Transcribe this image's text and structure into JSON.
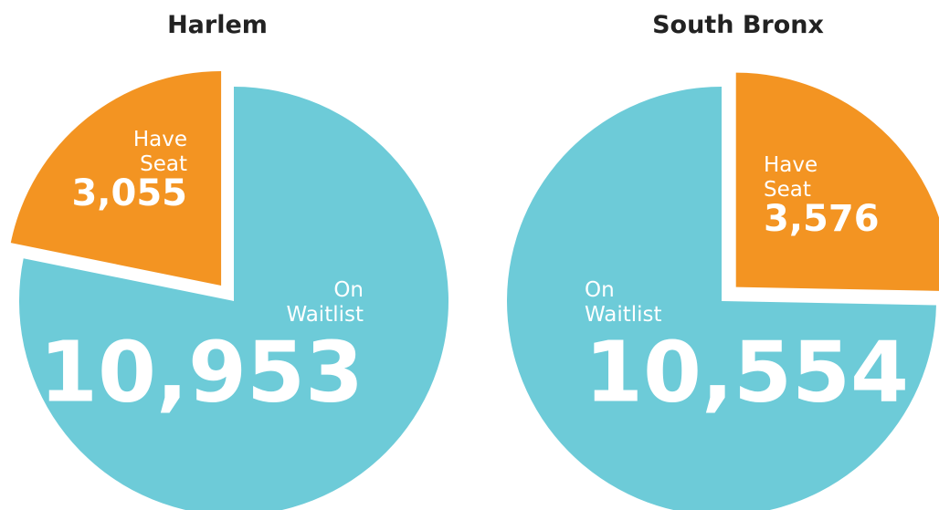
{
  "chart_data": [
    {
      "type": "pie",
      "title": "Harlem",
      "categories": [
        "Have Seat",
        "On Waitlist"
      ],
      "values": [
        3055,
        10953
      ],
      "value_labels": [
        "3,055",
        "10,953"
      ],
      "colors": [
        "#f39422",
        "#6dcbd8"
      ],
      "direction": "counterclockwise"
    },
    {
      "type": "pie",
      "title": "South Bronx",
      "categories": [
        "Have Seat",
        "On Waitlist"
      ],
      "values": [
        3576,
        10554
      ],
      "value_labels": [
        "3,576",
        "10,554"
      ],
      "colors": [
        "#f39422",
        "#6dcbd8"
      ],
      "direction": "clockwise"
    }
  ]
}
